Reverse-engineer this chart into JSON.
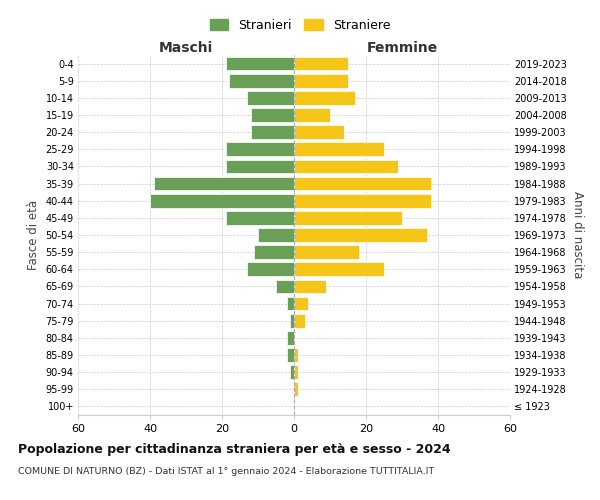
{
  "age_groups": [
    "100+",
    "95-99",
    "90-94",
    "85-89",
    "80-84",
    "75-79",
    "70-74",
    "65-69",
    "60-64",
    "55-59",
    "50-54",
    "45-49",
    "40-44",
    "35-39",
    "30-34",
    "25-29",
    "20-24",
    "15-19",
    "10-14",
    "5-9",
    "0-4"
  ],
  "birth_years": [
    "≤ 1923",
    "1924-1928",
    "1929-1933",
    "1934-1938",
    "1939-1943",
    "1944-1948",
    "1949-1953",
    "1954-1958",
    "1959-1963",
    "1964-1968",
    "1969-1973",
    "1974-1978",
    "1979-1983",
    "1984-1988",
    "1989-1993",
    "1994-1998",
    "1999-2003",
    "2004-2008",
    "2009-2013",
    "2014-2018",
    "2019-2023"
  ],
  "maschi": [
    0,
    0,
    1,
    2,
    2,
    1,
    2,
    5,
    13,
    11,
    10,
    19,
    40,
    39,
    19,
    19,
    12,
    12,
    13,
    18,
    19
  ],
  "femmine": [
    0,
    1,
    1,
    1,
    0,
    3,
    4,
    9,
    25,
    18,
    37,
    30,
    38,
    38,
    29,
    25,
    14,
    10,
    17,
    15,
    15
  ],
  "male_color": "#6a9f58",
  "female_color": "#f5c518",
  "background_color": "#ffffff",
  "grid_color": "#cccccc",
  "title": "Popolazione per cittadinanza straniera per età e sesso - 2024",
  "subtitle": "COMUNE DI NATURNO (BZ) - Dati ISTAT al 1° gennaio 2024 - Elaborazione TUTTITALIA.IT",
  "xlabel_left": "Maschi",
  "xlabel_right": "Femmine",
  "ylabel_left": "Fasce di età",
  "ylabel_right": "Anni di nascita",
  "legend_male": "Stranieri",
  "legend_female": "Straniere",
  "xlim": 60,
  "bar_height": 0.8
}
